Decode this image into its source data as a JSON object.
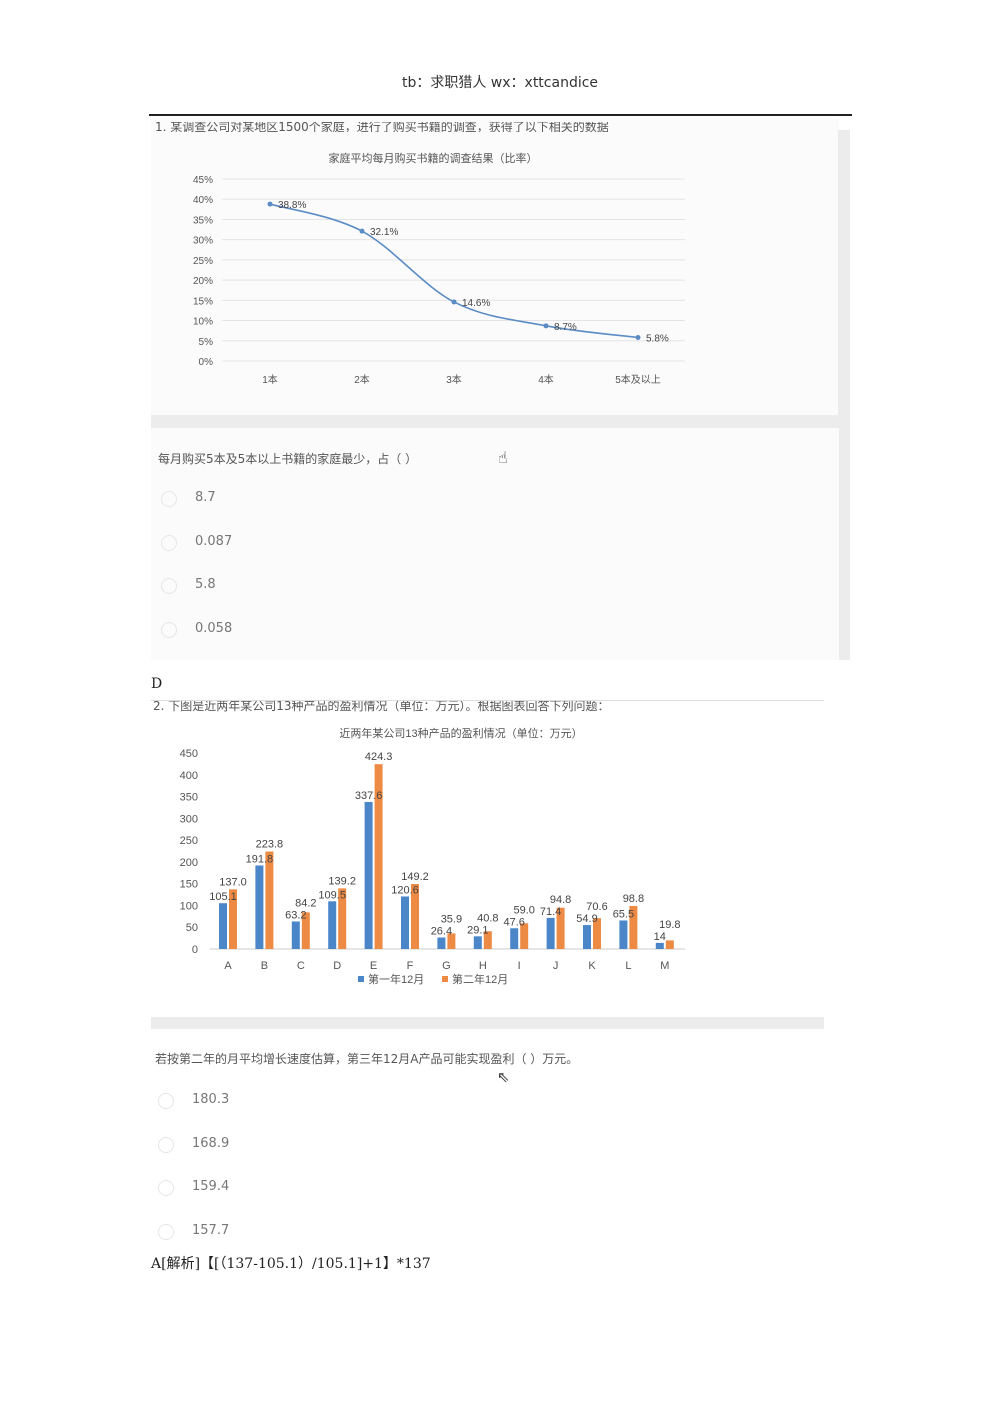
{
  "header": "tb：求职猎人  wx：xttcandice",
  "q1": {
    "intro": "1. 某调查公司对某地区1500个家庭，进行了购买书籍的调查，获得了以下相关的数据",
    "question": "每月购买5本及5本以上书籍的家庭最少，占（ ）",
    "options": [
      "8.7",
      "0.087",
      "5.8",
      "0.058"
    ],
    "answer": "D"
  },
  "q2": {
    "intro": "2. 下图是近两年某公司13种产品的盈利情况（单位：万元）。根据图表回答下列问题：",
    "question": "若按第二年的月平均增长速度估算，第三年12月A产品可能实现盈利（ ）万元。",
    "options": [
      "180.3",
      "168.9",
      "159.4",
      "157.7"
    ],
    "answer": "A[解析]【[（137-105.1）/105.1]+1】*137"
  },
  "chart_data": [
    {
      "type": "line",
      "title": "家庭平均每月购买书籍的调查结果（比率）",
      "categories": [
        "1本",
        "2本",
        "3本",
        "4本",
        "5本及以上"
      ],
      "values": [
        38.8,
        32.1,
        14.6,
        8.7,
        5.8
      ],
      "labels": [
        "38.8%",
        "32.1%",
        "14.6%",
        "8.7%",
        "5.8%"
      ],
      "yticks": [
        "0%",
        "5%",
        "10%",
        "15%",
        "20%",
        "25%",
        "30%",
        "35%",
        "40%",
        "45%"
      ],
      "ylim": [
        0,
        45
      ],
      "grid": true,
      "color": "#5b8cc4"
    },
    {
      "type": "bar",
      "title": "近两年某公司13种产品的盈利情况（单位：万元）",
      "categories": [
        "A",
        "B",
        "C",
        "D",
        "E",
        "F",
        "G",
        "H",
        "I",
        "J",
        "K",
        "L",
        "M"
      ],
      "series": [
        {
          "name": "第一年12月",
          "color": "#4a86c8",
          "values": [
            105.1,
            191.8,
            63.2,
            109.5,
            337.6,
            120.6,
            26.4,
            29.1,
            47.6,
            71.4,
            54.9,
            65.5,
            14
          ],
          "labels": [
            "105.1",
            "191.8",
            "63.2",
            "109.5",
            "337.6",
            "120.6",
            "26.4",
            "29.1",
            "47.6",
            "71.4",
            "54.9",
            "65.5",
            "14"
          ]
        },
        {
          "name": "第二年12月",
          "color": "#ed8a44",
          "values": [
            137.0,
            223.8,
            84.2,
            139.2,
            424.3,
            149.2,
            35.9,
            40.8,
            59.0,
            94.8,
            70.6,
            98.8,
            19.8
          ],
          "labels": [
            "137.0",
            "223.8",
            "84.2",
            "139.2",
            "424.3",
            "149.2",
            "35.9",
            "40.8",
            "59.0",
            "94.8",
            "70.6",
            "98.8",
            "19.8"
          ]
        }
      ],
      "yticks": [
        "0",
        "50",
        "100",
        "150",
        "200",
        "250",
        "300",
        "350",
        "400",
        "450"
      ],
      "ylim": [
        0,
        450
      ],
      "grid": false,
      "legend": "bottom"
    }
  ]
}
